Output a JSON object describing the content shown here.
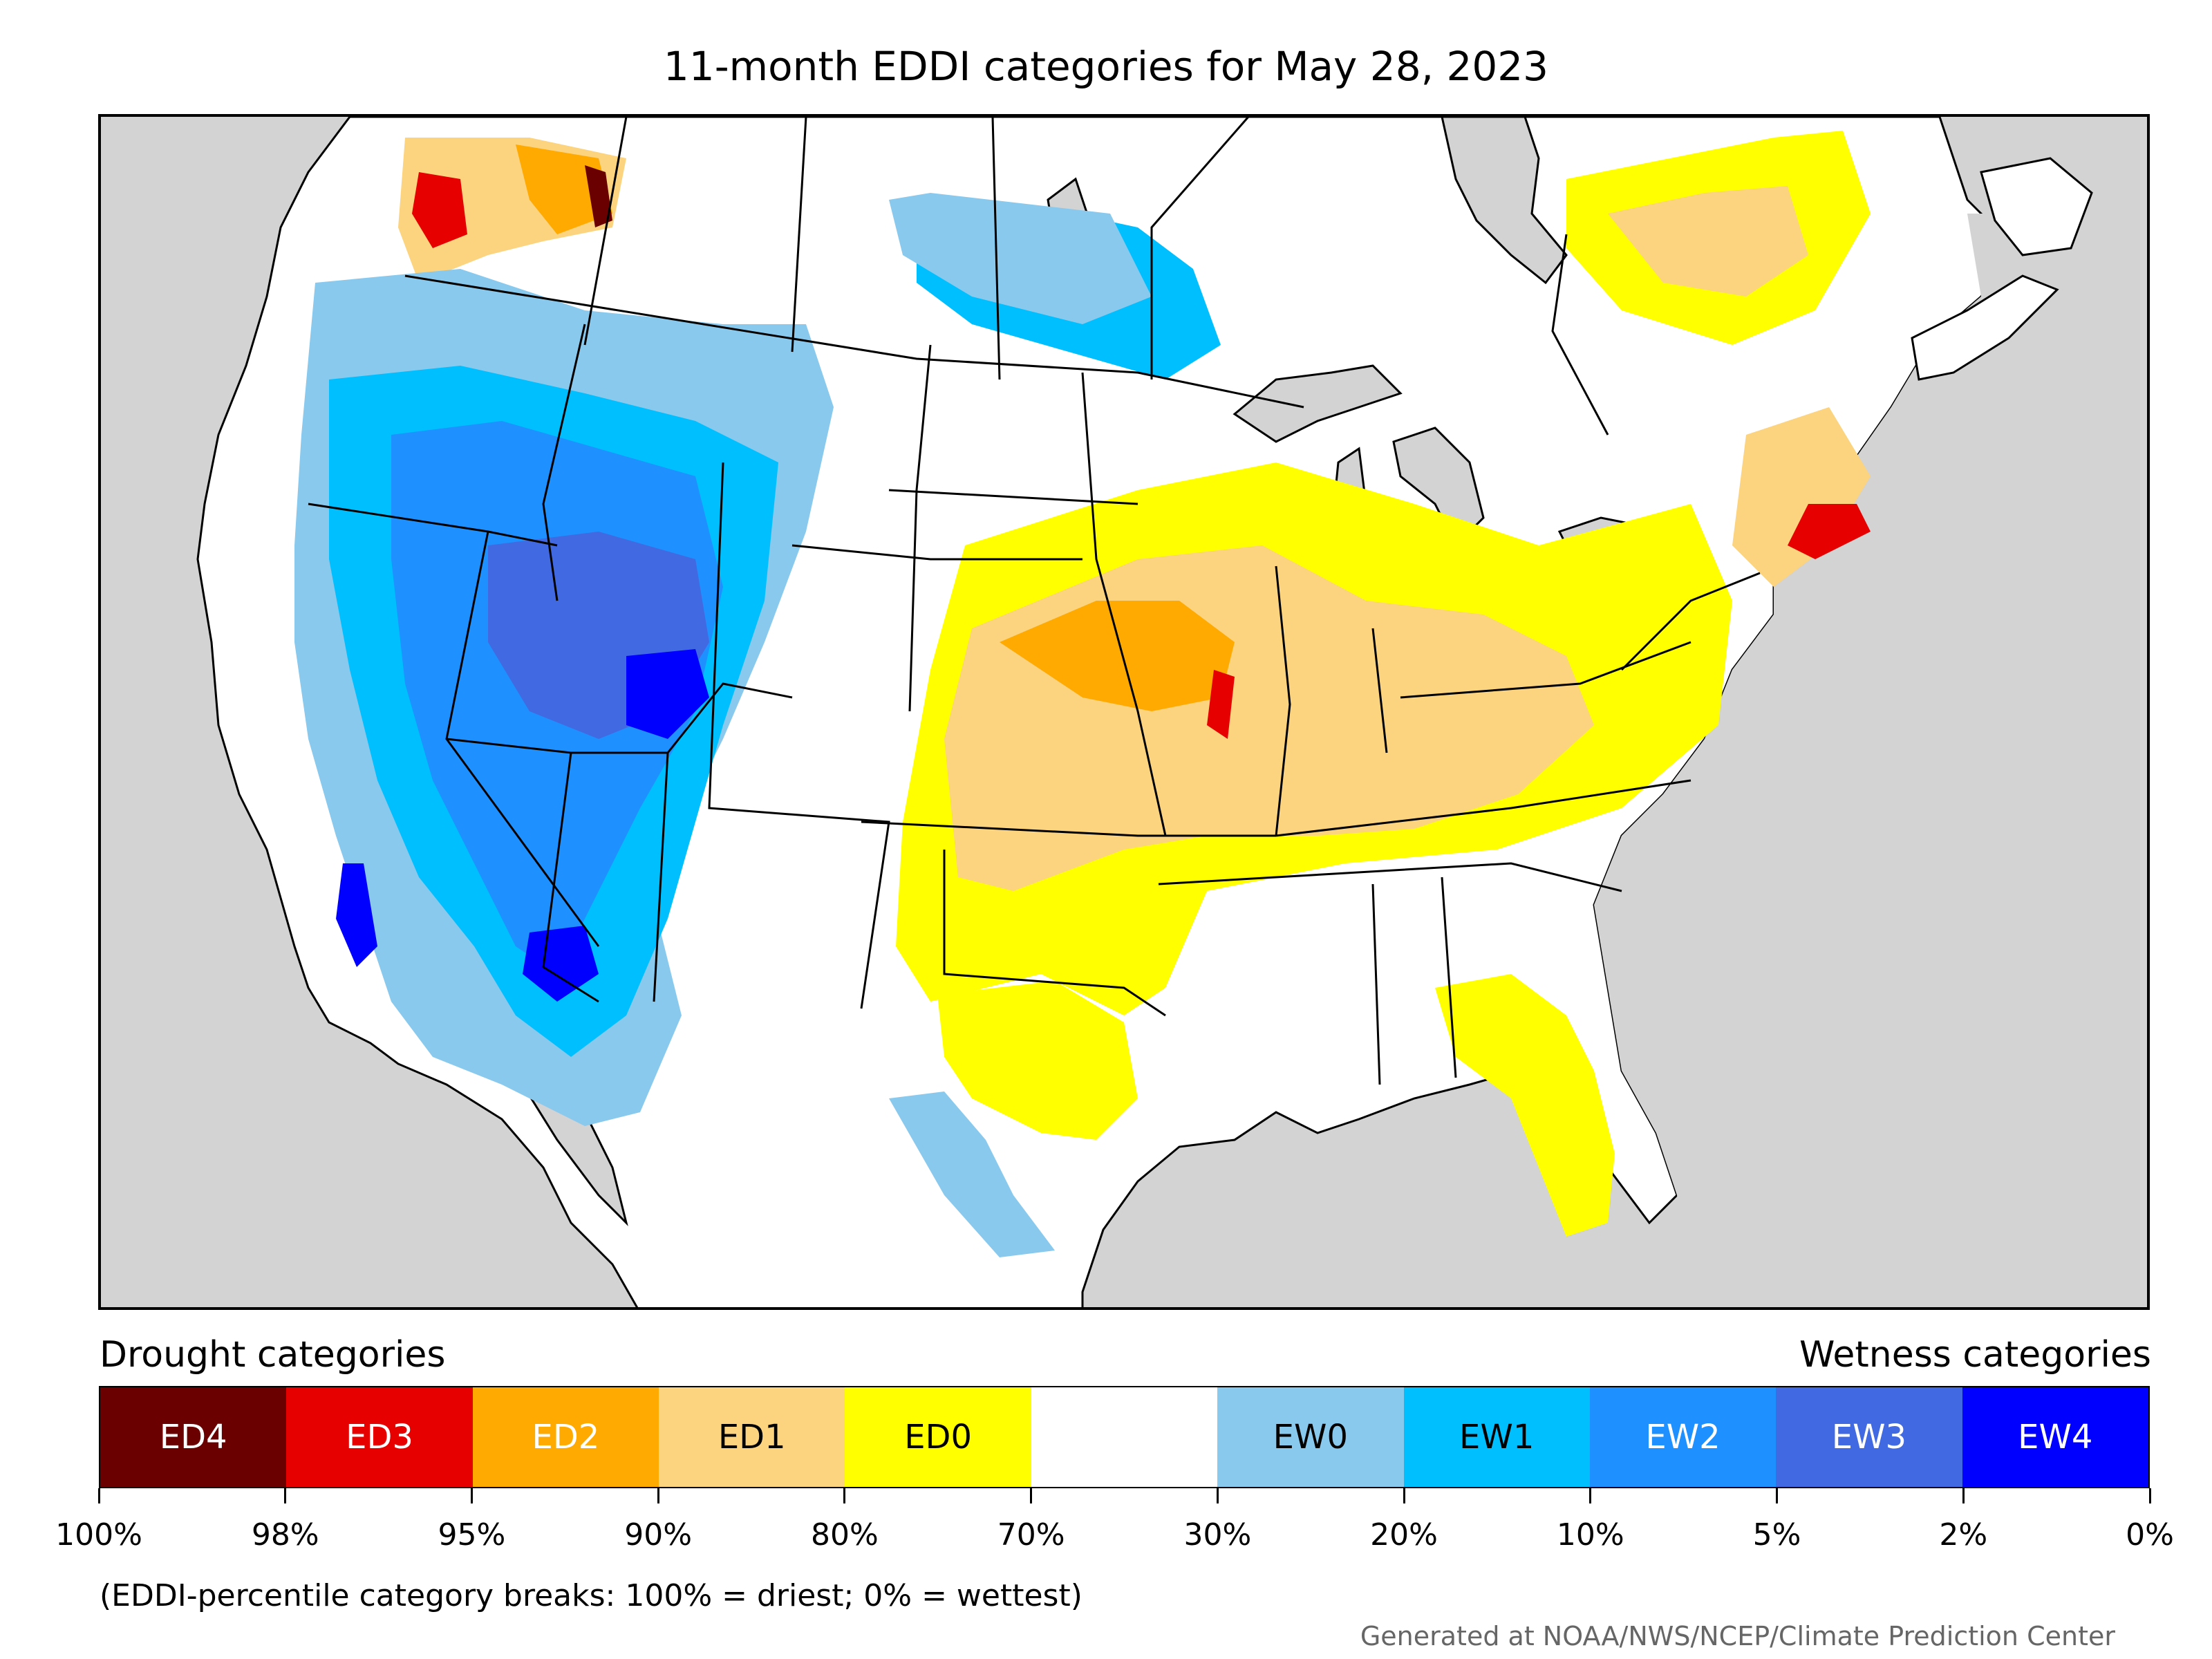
{
  "title": "11-month EDDI categories for May 28, 2023",
  "map": {
    "region": "contiguous United States",
    "background_color": "#d3d3d3",
    "land_color": "#ffffff",
    "border_color": "#000000"
  },
  "legend": {
    "drought_heading": "Drought categories",
    "wetness_heading": "Wetness categories",
    "categories": [
      {
        "label": "ED4",
        "color": "#6b0000",
        "text_color": "#ffffff"
      },
      {
        "label": "ED3",
        "color": "#e60000",
        "text_color": "#ffffff"
      },
      {
        "label": "ED2",
        "color": "#ffaa00",
        "text_color": "#ffffff"
      },
      {
        "label": "ED1",
        "color": "#fcd37f",
        "text_color": "#000000"
      },
      {
        "label": "ED0",
        "color": "#ffff00",
        "text_color": "#000000"
      },
      {
        "label": "",
        "color": "#ffffff",
        "text_color": "#000000"
      },
      {
        "label": "EW0",
        "color": "#89c9ee",
        "text_color": "#000000"
      },
      {
        "label": "EW1",
        "color": "#00bfff",
        "text_color": "#000000"
      },
      {
        "label": "EW2",
        "color": "#1e90ff",
        "text_color": "#ffffff"
      },
      {
        "label": "EW3",
        "color": "#4169e1",
        "text_color": "#ffffff"
      },
      {
        "label": "EW4",
        "color": "#0000ff",
        "text_color": "#ffffff"
      }
    ],
    "ticks": [
      "100%",
      "98%",
      "95%",
      "90%",
      "80%",
      "70%",
      "30%",
      "20%",
      "10%",
      "5%",
      "2%",
      "0%"
    ]
  },
  "note": "(EDDI-percentile category breaks: 100% = driest; 0% = wettest)",
  "credit": "Generated at NOAA/NWS/NCEP/Climate Prediction Center"
}
